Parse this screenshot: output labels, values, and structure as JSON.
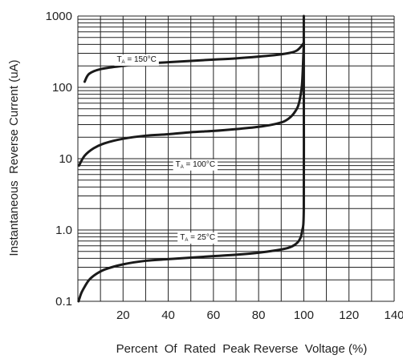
{
  "chart_data": {
    "type": "line",
    "xlabel": "Percent  Of  Rated  Peak Reverse  Voltage (%)",
    "ylabel": "Instantaneous  Reverse Current (uA)",
    "xlim": [
      0,
      140
    ],
    "ylim": [
      0.1,
      1000
    ],
    "y_scale": "log",
    "grid": true,
    "x_ticks": [
      "20",
      "40",
      "60",
      "80",
      "100",
      "120",
      "140"
    ],
    "y_ticks": [
      "0.1",
      "1.0",
      "10",
      "100",
      "1000"
    ],
    "series": [
      {
        "name": "TA = 150°C",
        "label_main": "T",
        "label_sub": "A",
        "label_rest": " = 150°C",
        "x": [
          3,
          5,
          10,
          20,
          30,
          40,
          50,
          60,
          70,
          80,
          88,
          94,
          97,
          99,
          100
        ],
        "y": [
          120,
          155,
          180,
          200,
          215,
          225,
          235,
          245,
          255,
          270,
          285,
          305,
          330,
          380,
          420
        ]
      },
      {
        "name": "TA = 100°C",
        "label_main": "T",
        "label_sub": "A",
        "label_rest": " = 100°C",
        "x": [
          0.5,
          3,
          7,
          12,
          20,
          30,
          40,
          50,
          60,
          70,
          80,
          86,
          91,
          94,
          96,
          97.5,
          98.5,
          99.3,
          100
        ],
        "y": [
          8,
          11,
          14,
          16.5,
          19,
          21,
          22,
          23.5,
          24.5,
          26,
          28,
          30,
          33,
          38,
          45,
          55,
          75,
          120,
          400
        ]
      },
      {
        "name": "TA = 25°C",
        "label_main": "T",
        "label_sub": "A",
        "label_rest": " = 25°C",
        "x": [
          0.3,
          1.5,
          3,
          5,
          8,
          12,
          20,
          30,
          40,
          50,
          60,
          70,
          80,
          88,
          93,
          96,
          98,
          99.2,
          100,
          100,
          100
        ],
        "y": [
          0.1,
          0.13,
          0.16,
          0.2,
          0.24,
          0.28,
          0.33,
          0.37,
          0.39,
          0.41,
          0.43,
          0.45,
          0.48,
          0.52,
          0.56,
          0.62,
          0.72,
          0.95,
          2,
          100,
          1000
        ]
      }
    ]
  }
}
